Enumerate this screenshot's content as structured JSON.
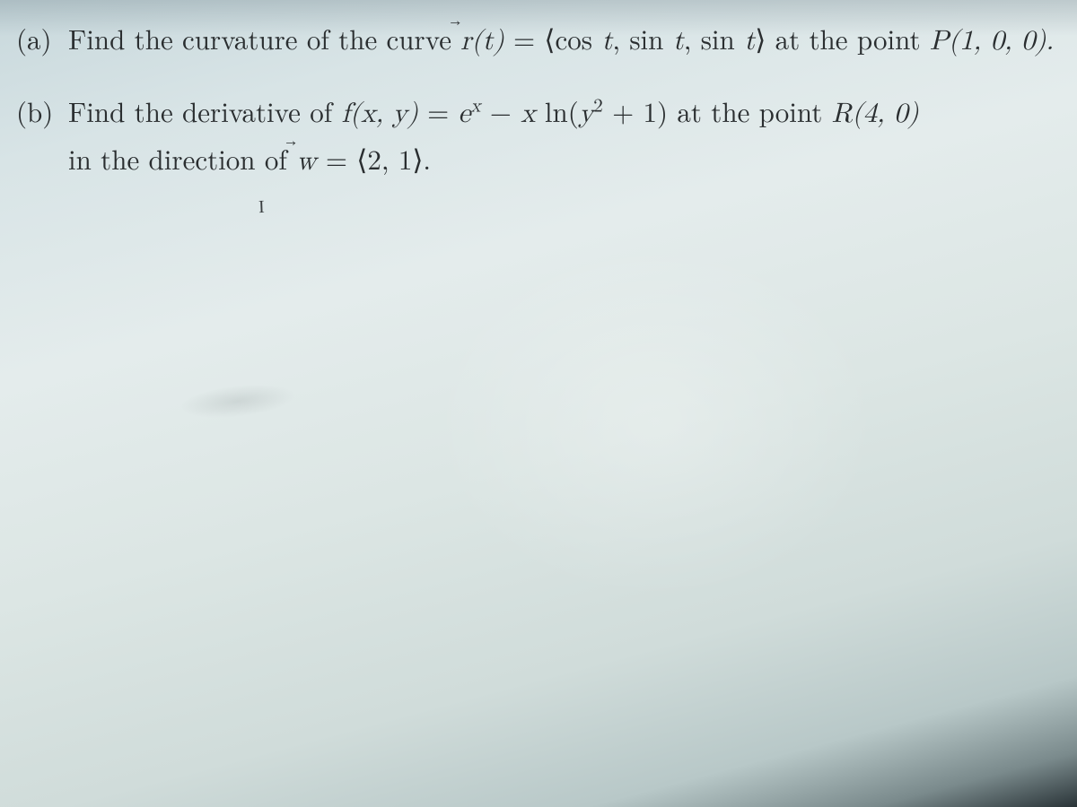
{
  "problems": {
    "a": {
      "label": "(a)",
      "pre": "Find the curvature of the curve ",
      "rvec": "r",
      "rvec_arrow": "⃗",
      "rarg": "(t)",
      "eq": " = ",
      "rhs_open": "⟨cos ",
      "t1": "t",
      "sep1": ", sin ",
      "t2": "t",
      "sep2": ", sin ",
      "t3": "t",
      "rhs_close": "⟩",
      "tail": " at the point ",
      "point": "P(1, 0, 0)."
    },
    "b": {
      "label": "(b)",
      "pre": "Find the derivative of ",
      "f": "f",
      "fargs": "(x, y)",
      "eq": " = ",
      "ex_e": "e",
      "ex_x": "x",
      "minus": " − ",
      "x": "x",
      "ln": " ln(",
      "y": "y",
      "sq": "2",
      "plus1": " + 1)",
      "mid": " at the point ",
      "point": "R(4, 0)",
      "line2a": "in the direction of ",
      "wvec": "w",
      "wvec_arrow": "⃗",
      "weq": " = ⟨2, 1⟩.",
      "annot": "I"
    }
  }
}
